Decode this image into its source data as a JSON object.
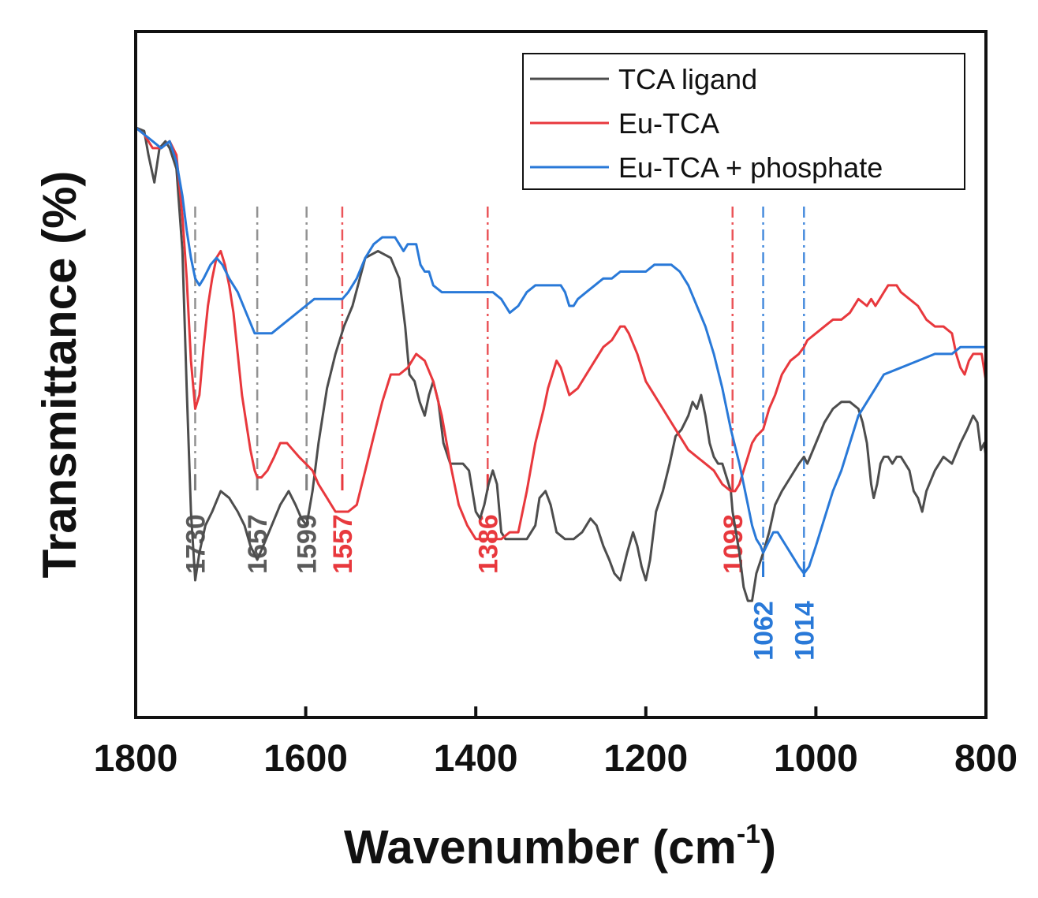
{
  "chart_data": {
    "type": "line",
    "title": "",
    "xlabel": "Wavenumber (cm",
    "xlabel_sup": "-1",
    "xlabel_close": ")",
    "ylabel": "Transmittance (%)",
    "xlim": [
      1800,
      800
    ],
    "ylim": [
      0,
      100
    ],
    "x_ticks": [
      1800,
      1600,
      1400,
      1200,
      1000,
      800
    ],
    "x_tick_labels": [
      "1800",
      "1600",
      "1400",
      "1200",
      "1000",
      "800"
    ],
    "grid": false,
    "legend_position": "top-right",
    "series": [
      {
        "name": "TCA ligand",
        "color": "#4d4d4d",
        "x": [
          1800,
          1790,
          1785,
          1778,
          1772,
          1765,
          1760,
          1752,
          1745,
          1740,
          1735,
          1730,
          1725,
          1718,
          1710,
          1700,
          1690,
          1680,
          1672,
          1665,
          1657,
          1650,
          1640,
          1630,
          1620,
          1612,
          1605,
          1599,
          1592,
          1585,
          1575,
          1565,
          1555,
          1545,
          1530,
          1515,
          1500,
          1490,
          1483,
          1478,
          1472,
          1466,
          1460,
          1455,
          1450,
          1444,
          1438,
          1430,
          1422,
          1415,
          1408,
          1400,
          1395,
          1390,
          1385,
          1380,
          1375,
          1370,
          1365,
          1360,
          1350,
          1340,
          1330,
          1325,
          1318,
          1312,
          1305,
          1295,
          1285,
          1275,
          1265,
          1258,
          1250,
          1243,
          1237,
          1230,
          1222,
          1215,
          1210,
          1205,
          1200,
          1195,
          1188,
          1180,
          1172,
          1165,
          1158,
          1150,
          1145,
          1140,
          1135,
          1130,
          1125,
          1120,
          1115,
          1110,
          1105,
          1100,
          1098,
          1094,
          1090,
          1085,
          1080,
          1075,
          1070,
          1062,
          1055,
          1048,
          1040,
          1030,
          1020,
          1014,
          1010,
          1000,
          990,
          980,
          970,
          960,
          950,
          945,
          940,
          935,
          932,
          928,
          924,
          920,
          915,
          910,
          905,
          900,
          895,
          890,
          885,
          880,
          875,
          870,
          860,
          850,
          840,
          830,
          822,
          815,
          810,
          806,
          802,
          800
        ],
        "y": [
          86,
          85.5,
          82,
          78,
          83,
          84,
          83,
          80,
          68,
          48,
          30,
          20,
          24,
          28,
          30,
          33,
          32,
          30,
          28,
          25,
          23,
          25,
          28,
          31,
          33,
          31,
          29,
          28,
          33,
          40,
          48,
          53,
          57,
          60,
          67,
          68,
          67,
          64,
          57,
          50,
          49,
          46,
          44,
          47,
          49,
          46,
          40,
          37,
          37,
          37,
          36,
          30,
          29,
          31,
          34,
          36,
          34,
          27,
          26,
          26,
          26,
          26,
          28,
          32,
          33,
          31,
          27,
          26,
          26,
          27,
          29,
          28,
          25,
          23,
          21,
          20,
          24,
          27,
          25,
          22,
          20,
          23,
          30,
          33,
          37,
          41,
          42,
          44,
          46,
          45,
          47,
          44,
          40,
          38,
          37,
          37,
          35,
          33,
          30,
          27,
          24,
          19,
          17,
          17,
          21,
          24,
          27,
          31,
          33,
          35,
          37,
          38,
          37,
          40,
          43,
          45,
          46,
          46,
          45,
          43,
          40,
          34,
          32,
          34,
          37,
          38,
          38,
          37,
          38,
          38,
          37,
          36,
          33,
          32,
          30,
          33,
          36,
          38,
          37,
          40,
          42,
          44,
          43,
          39,
          40,
          38
        ]
      },
      {
        "name": "Eu-TCA",
        "color": "#e8383d",
        "x": [
          1800,
          1790,
          1780,
          1770,
          1760,
          1752,
          1745,
          1740,
          1735,
          1730,
          1725,
          1720,
          1715,
          1710,
          1705,
          1700,
          1695,
          1690,
          1685,
          1680,
          1675,
          1670,
          1665,
          1660,
          1657,
          1652,
          1645,
          1637,
          1630,
          1622,
          1615,
          1608,
          1600,
          1592,
          1585,
          1575,
          1565,
          1557,
          1550,
          1540,
          1530,
          1520,
          1510,
          1500,
          1490,
          1480,
          1470,
          1460,
          1450,
          1440,
          1430,
          1420,
          1410,
          1400,
          1395,
          1390,
          1386,
          1380,
          1370,
          1360,
          1350,
          1340,
          1330,
          1320,
          1315,
          1310,
          1305,
          1300,
          1295,
          1290,
          1280,
          1270,
          1260,
          1250,
          1240,
          1235,
          1230,
          1225,
          1220,
          1210,
          1200,
          1190,
          1180,
          1170,
          1160,
          1150,
          1140,
          1130,
          1120,
          1110,
          1100,
          1098,
          1095,
          1090,
          1085,
          1080,
          1075,
          1070,
          1062,
          1055,
          1048,
          1040,
          1030,
          1020,
          1014,
          1010,
          1000,
          990,
          980,
          970,
          960,
          950,
          940,
          935,
          930,
          925,
          920,
          915,
          910,
          905,
          900,
          890,
          880,
          870,
          860,
          850,
          840,
          835,
          830,
          825,
          820,
          815,
          810,
          805,
          800
        ],
        "y": [
          86,
          85,
          83,
          83,
          84,
          82,
          73,
          64,
          52,
          45,
          47,
          54,
          60,
          64,
          67,
          68,
          66,
          63,
          59,
          53,
          47,
          43,
          39,
          36,
          35,
          35,
          36,
          38,
          40,
          40,
          39,
          38,
          37,
          36,
          34,
          32,
          30,
          30,
          30,
          31,
          36,
          41,
          46,
          50,
          50,
          51,
          53,
          52,
          49,
          44,
          37,
          31,
          28,
          26,
          26,
          26,
          26,
          26,
          26,
          27,
          27,
          33,
          40,
          45,
          48,
          50,
          52,
          51,
          49,
          47,
          48,
          50,
          52,
          54,
          55,
          56,
          57,
          57,
          56,
          53,
          49,
          47,
          45,
          43,
          41,
          39,
          38,
          37,
          36,
          34,
          33,
          33,
          33,
          34,
          36,
          38,
          40,
          41,
          42,
          45,
          47,
          50,
          52,
          53,
          54,
          55,
          56,
          57,
          58,
          58,
          59,
          61,
          60,
          61,
          60,
          61,
          62,
          63,
          63,
          63,
          62,
          61,
          60,
          58,
          57,
          57,
          56,
          53,
          51,
          50,
          52,
          53,
          53,
          53,
          49
        ]
      },
      {
        "name": "Eu-TCA + phosphate",
        "color": "#2979d8",
        "x": [
          1800,
          1790,
          1780,
          1770,
          1760,
          1752,
          1745,
          1740,
          1735,
          1730,
          1725,
          1720,
          1712,
          1705,
          1698,
          1690,
          1680,
          1670,
          1660,
          1650,
          1640,
          1630,
          1620,
          1610,
          1600,
          1590,
          1580,
          1570,
          1557,
          1550,
          1540,
          1530,
          1520,
          1510,
          1500,
          1495,
          1490,
          1485,
          1480,
          1475,
          1470,
          1465,
          1460,
          1455,
          1450,
          1440,
          1430,
          1420,
          1410,
          1400,
          1390,
          1380,
          1370,
          1365,
          1360,
          1350,
          1340,
          1330,
          1320,
          1310,
          1300,
          1295,
          1290,
          1285,
          1280,
          1270,
          1260,
          1250,
          1240,
          1230,
          1220,
          1210,
          1200,
          1190,
          1180,
          1170,
          1160,
          1150,
          1140,
          1130,
          1120,
          1110,
          1100,
          1090,
          1080,
          1075,
          1070,
          1065,
          1062,
          1058,
          1054,
          1050,
          1045,
          1040,
          1035,
          1030,
          1025,
          1020,
          1014,
          1008,
          1000,
          990,
          980,
          970,
          960,
          950,
          940,
          930,
          920,
          900,
          880,
          860,
          840,
          830,
          820,
          810,
          800
        ],
        "y": [
          86,
          85,
          84,
          83,
          84,
          81,
          76,
          71,
          67,
          64,
          63,
          64,
          66,
          67,
          66,
          64,
          62,
          59,
          56,
          56,
          56,
          57,
          58,
          59,
          60,
          61,
          61,
          61,
          61,
          62,
          64,
          67,
          69,
          70,
          70,
          70,
          69,
          68,
          69,
          69,
          69,
          66,
          65,
          65,
          63,
          62,
          62,
          62,
          62,
          62,
          62,
          62,
          61,
          60,
          59,
          60,
          62,
          63,
          63,
          63,
          63,
          62,
          60,
          60,
          61,
          62,
          63,
          64,
          64,
          65,
          65,
          65,
          65,
          66,
          66,
          66,
          65,
          63,
          60,
          57,
          53,
          48,
          42,
          37,
          31,
          28,
          26,
          25,
          24,
          25,
          26,
          27,
          27,
          26,
          25,
          24,
          23,
          22,
          21,
          22,
          25,
          29,
          33,
          36,
          40,
          44,
          46,
          48,
          50,
          51,
          52,
          53,
          53,
          54,
          54,
          54,
          54
        ]
      }
    ],
    "annotations": [
      {
        "label": "1730",
        "x": 1730,
        "color": "#808080",
        "group": "upper"
      },
      {
        "label": "1657",
        "x": 1657,
        "color": "#808080",
        "group": "upper"
      },
      {
        "label": "1599",
        "x": 1599,
        "color": "#808080",
        "group": "upper"
      },
      {
        "label": "1557",
        "x": 1557,
        "color": "#e8383d",
        "group": "upper"
      },
      {
        "label": "1386",
        "x": 1386,
        "color": "#e8383d",
        "group": "upper"
      },
      {
        "label": "1098",
        "x": 1098,
        "color": "#e8383d",
        "group": "upper"
      },
      {
        "label": "1062",
        "x": 1062,
        "color": "#2979d8",
        "group": "lower"
      },
      {
        "label": "1014",
        "x": 1014,
        "color": "#2979d8",
        "group": "lower"
      }
    ],
    "annotation_label_colors": {
      "gray": "#5a5a5a",
      "red": "#e8383d",
      "blue": "#2979d8"
    }
  }
}
